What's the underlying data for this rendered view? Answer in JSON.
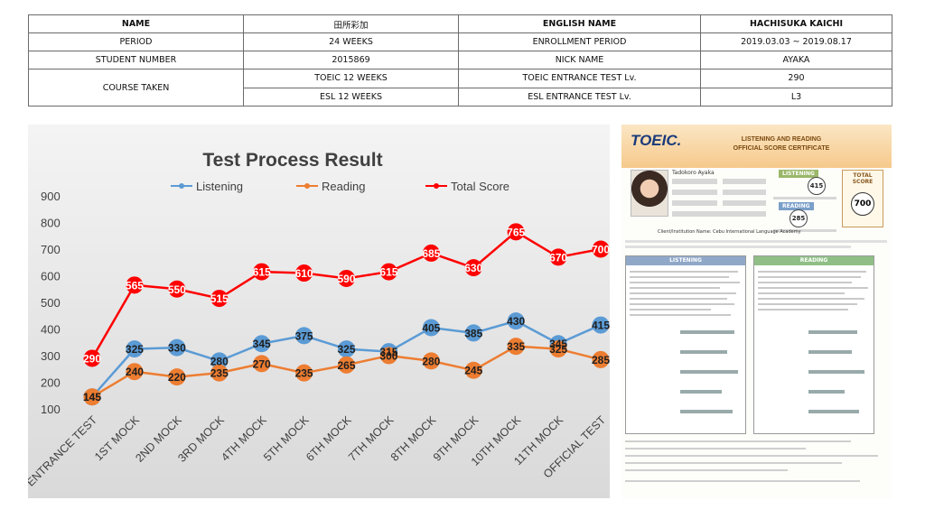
{
  "info_table": {
    "row1": {
      "name_label": "NAME",
      "name_value": "田所彩加",
      "english_name_label": "ENGLISH NAME",
      "english_name_value": "HACHISUKA KAICHI"
    },
    "row2": {
      "period_label": "PERIOD",
      "period_value": "24 WEEKS",
      "enrollment_label": "ENROLLMENT PERIOD",
      "enrollment_value": "2019.03.03 ~ 2019.08.17"
    },
    "row3": {
      "student_number_label": "STUDENT NUMBER",
      "student_number_value": "2015869",
      "nick_name_label": "NICK NAME",
      "nick_name_value": "AYAKA"
    },
    "course": {
      "label": "COURSE TAKEN",
      "row1": {
        "course": "TOEIC 12 WEEKS",
        "test_label": "TOEIC ENTRANCE TEST Lv.",
        "test_value": "290"
      },
      "row2": {
        "course": "ESL 12 WEEKS",
        "test_label": "ESL ENTRANCE TEST Lv.",
        "test_value": "L3"
      }
    }
  },
  "chart_data": {
    "type": "line",
    "title": "Test Process Result",
    "categories": [
      "ENTRANCE TEST",
      "1ST MOCK",
      "2ND MOCK",
      "3RD MOCK",
      "4TH MOCK",
      "5TH MOCK",
      "6TH MOCK",
      "7TH MOCK",
      "8TH MOCK",
      "9TH MOCK",
      "10TH MOCK",
      "11TH MOCK",
      "OFFICIAL TEST"
    ],
    "series": [
      {
        "name": "Listening",
        "color": "#5b9bd5",
        "values": [
          145,
          325,
          330,
          280,
          345,
          375,
          325,
          315,
          405,
          385,
          430,
          345,
          415
        ]
      },
      {
        "name": "Reading",
        "color": "#ed7d31",
        "values": [
          145,
          240,
          220,
          235,
          270,
          235,
          265,
          300,
          280,
          245,
          335,
          325,
          285
        ]
      },
      {
        "name": "Total Score",
        "color": "#ff0000",
        "values": [
          290,
          565,
          550,
          515,
          615,
          610,
          590,
          615,
          685,
          630,
          765,
          670,
          700
        ]
      }
    ],
    "yticks": [
      100,
      200,
      300,
      400,
      500,
      600,
      700,
      800,
      900
    ],
    "ylim": [
      100,
      900
    ],
    "legend_position": "top",
    "grid": false
  },
  "certificate": {
    "logo": "TOEIC.",
    "title_line1": "LISTENING AND READING",
    "title_line2": "OFFICIAL SCORE CERTIFICATE",
    "name": "Tadokoro Ayaka",
    "listening_label": "LISTENING",
    "listening_score": "415",
    "reading_label": "READING",
    "reading_score": "285",
    "total_label": "TOTAL SCORE",
    "total_score": "700",
    "institution": "Client/Institution Name:  Cebu International Language Academy",
    "panel_listening": "LISTENING",
    "panel_reading": "READING"
  }
}
